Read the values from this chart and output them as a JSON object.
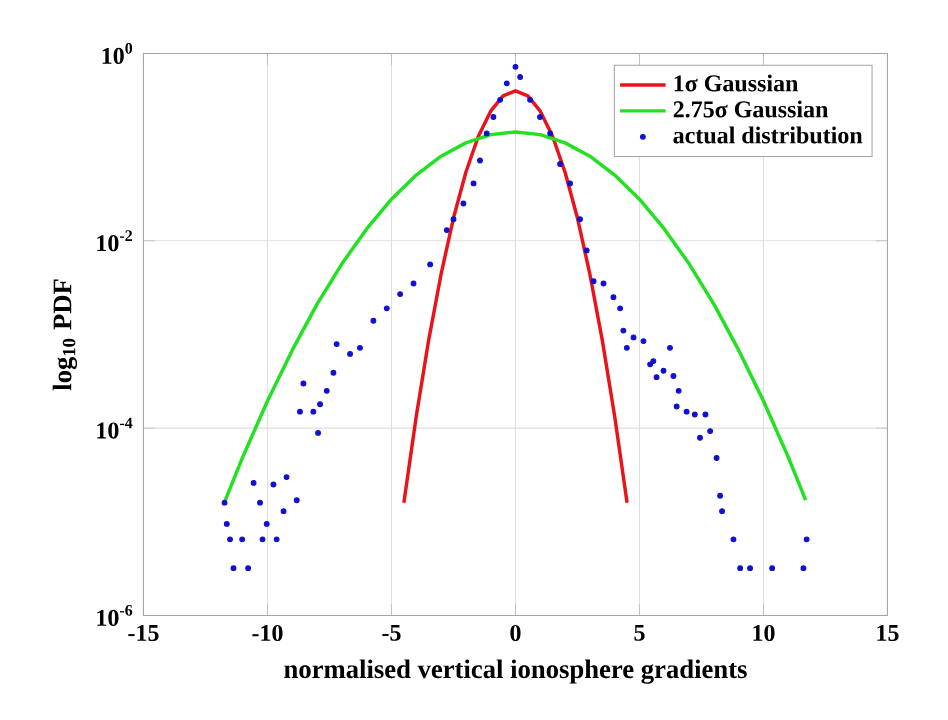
{
  "chart_data": {
    "type": "line",
    "xlabel": "normalised vertical ionosphere gradients",
    "ylabel": "log$_{10}$ PDF",
    "xlim": [
      -15,
      15
    ],
    "xticks": [
      -15,
      -10,
      -5,
      0,
      5,
      10,
      15
    ],
    "ylim": [
      1e-06,
      1
    ],
    "log": "y",
    "yticks": [
      {
        "value": 1e-06,
        "label": "10$^{-6}$"
      },
      {
        "value": 0.0001,
        "label": "10$^{-4}$"
      },
      {
        "value": 0.01,
        "label": "10$^{-2}$"
      },
      {
        "value": 1,
        "label": "10$^{0}$"
      }
    ],
    "grid": true,
    "legend": "top right",
    "series": [
      {
        "name": "1σ Gaussian",
        "color": "#e8141a",
        "x": [
          -4.5,
          -4,
          -3.5,
          -3,
          -2.5,
          -2,
          -1.5,
          -1,
          -0.5,
          0,
          0.5,
          1,
          1.5,
          2,
          2.5,
          3,
          3.5,
          4,
          4.5
        ],
        "values": [
          1.6e-05,
          0.000134,
          0.00087,
          0.0044,
          0.0175,
          0.054,
          0.13,
          0.242,
          0.352,
          0.399,
          0.352,
          0.242,
          0.13,
          0.054,
          0.0175,
          0.0044,
          0.00087,
          0.000134,
          1.6e-05
        ]
      },
      {
        "name": "2.75σ Gaussian",
        "color": "#22e022",
        "x": [
          -11.7,
          -11,
          -10,
          -9,
          -8,
          -7,
          -6,
          -5,
          -4,
          -3,
          -2,
          -1,
          0,
          1,
          2,
          3,
          4,
          5,
          6,
          7,
          8,
          9,
          10,
          11,
          11.7
        ],
        "values": [
          1.7e-05,
          4.9e-05,
          0.000195,
          0.00068,
          0.00211,
          0.00568,
          0.0134,
          0.0278,
          0.0503,
          0.08,
          0.111,
          0.136,
          0.145,
          0.136,
          0.111,
          0.08,
          0.0503,
          0.0278,
          0.0134,
          0.00568,
          0.00211,
          0.00068,
          0.000195,
          4.9e-05,
          1.7e-05
        ]
      },
      {
        "name": "actual distribution",
        "type": "scatter",
        "color": "#1010d0",
        "x": [
          -11.73,
          -11.64,
          -11.51,
          -11.37,
          -11.02,
          -10.78,
          -10.56,
          -10.3,
          -10.2,
          -10.03,
          -9.76,
          -9.63,
          -9.35,
          -9.23,
          -8.82,
          -8.69,
          -8.55,
          -8.15,
          -7.96,
          -7.88,
          -7.61,
          -7.34,
          -7.21,
          -6.67,
          -6.27,
          -5.73,
          -5.19,
          -4.65,
          -4.11,
          -3.44,
          -2.77,
          -2.5,
          -2.1,
          -1.69,
          -1.43,
          -1.16,
          -0.89,
          -0.62,
          -0.35,
          0,
          0.19,
          0.59,
          0.99,
          1.4,
          1.8,
          2.2,
          2.6,
          2.87,
          3.15,
          3.55,
          3.95,
          4.22,
          4.35,
          4.49,
          4.76,
          5.16,
          5.43,
          5.56,
          5.69,
          5.97,
          6.23,
          6.37,
          6.5,
          6.58,
          6.9,
          7.23,
          7.44,
          7.66,
          7.85,
          8.11,
          8.25,
          8.33,
          8.79,
          9.06,
          9.46,
          10.35,
          11.61,
          11.74
        ],
        "values": [
          1.6e-05,
          9.5e-06,
          6.5e-06,
          3.2e-06,
          6.5e-06,
          3.2e-06,
          2.6e-05,
          1.6e-05,
          6.5e-06,
          9.5e-06,
          2.5e-05,
          6.5e-06,
          1.3e-05,
          3e-05,
          1.7e-05,
          0.00015,
          0.0003,
          0.00015,
          8.9e-05,
          0.00018,
          0.00025,
          0.00039,
          0.00079,
          0.00062,
          0.00072,
          0.0014,
          0.0019,
          0.0027,
          0.0035,
          0.0056,
          0.013,
          0.017,
          0.025,
          0.041,
          0.072,
          0.14,
          0.21,
          0.32,
          0.48,
          0.72,
          0.56,
          0.32,
          0.21,
          0.14,
          0.066,
          0.041,
          0.017,
          0.0079,
          0.0037,
          0.0035,
          0.0025,
          0.0019,
          0.0011,
          0.00072,
          0.00093,
          0.00085,
          0.00048,
          0.00052,
          0.00035,
          0.00041,
          0.00072,
          0.00036,
          0.00017,
          0.00025,
          0.00015,
          0.00014,
          7.9e-05,
          0.00014,
          9.3e-05,
          4.8e-05,
          1.9e-05,
          1.3e-05,
          6.5e-06,
          3.2e-06,
          3.2e-06,
          3.2e-06,
          3.2e-06,
          6.5e-06
        ]
      }
    ]
  }
}
